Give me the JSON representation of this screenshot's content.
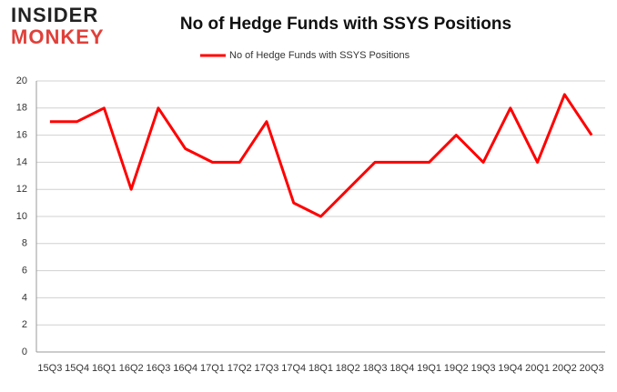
{
  "logo": {
    "line1": "INSIDER",
    "line2": "MONKEY"
  },
  "chart_data": {
    "type": "line",
    "title": "No of Hedge Funds with SSYS Positions",
    "categories": [
      "15Q3",
      "15Q4",
      "16Q1",
      "16Q2",
      "16Q3",
      "16Q4",
      "17Q1",
      "17Q2",
      "17Q3",
      "17Q4",
      "18Q1",
      "18Q2",
      "18Q3",
      "18Q4",
      "19Q1",
      "19Q2",
      "19Q3",
      "19Q4",
      "20Q1",
      "20Q2",
      "20Q3"
    ],
    "series": [
      {
        "name": "No of Hedge Funds with SSYS Positions",
        "color": "#ff0000",
        "values": [
          17,
          17,
          18,
          12,
          18,
          15,
          14,
          14,
          17,
          11,
          10,
          12,
          14,
          14,
          14,
          16,
          14,
          18,
          14,
          19,
          16
        ]
      }
    ],
    "ylim": [
      0,
      20
    ],
    "yticks": [
      0,
      2,
      4,
      6,
      8,
      10,
      12,
      14,
      16,
      18,
      20
    ],
    "grid": true,
    "legend": "top"
  }
}
